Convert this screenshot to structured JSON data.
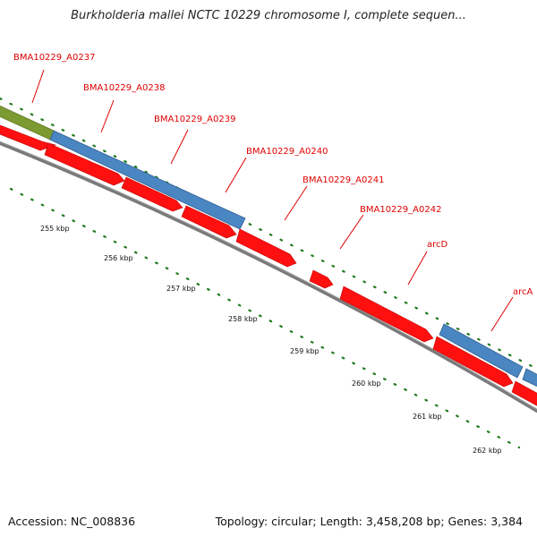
{
  "title": "Burkholderia mallei NCTC 10229 chromosome I, complete sequen...",
  "footer": {
    "accession": "Accession: NC_008836",
    "summary": "Topology: circular; Length: 3,458,208 bp; Genes: 3,384"
  },
  "colors": {
    "cds": "#ff0000",
    "blue_feature": "#4a86c2",
    "green_feature": "#7c9a32",
    "backbone": "#808080",
    "tick": "#1e7a1e",
    "label": "#e00000"
  },
  "gene_labels": [
    "BMA10229_A0237",
    "BMA10229_A0238",
    "BMA10229_A0239",
    "BMA10229_A0240",
    "BMA10229_A0241",
    "BMA10229_A0242",
    "arcD",
    "arcA"
  ],
  "kbp_labels": [
    "255 kbp",
    "256 kbp",
    "257 kbp",
    "258 kbp",
    "259 kbp",
    "260 kbp",
    "261 kbp",
    "262 kbp"
  ]
}
